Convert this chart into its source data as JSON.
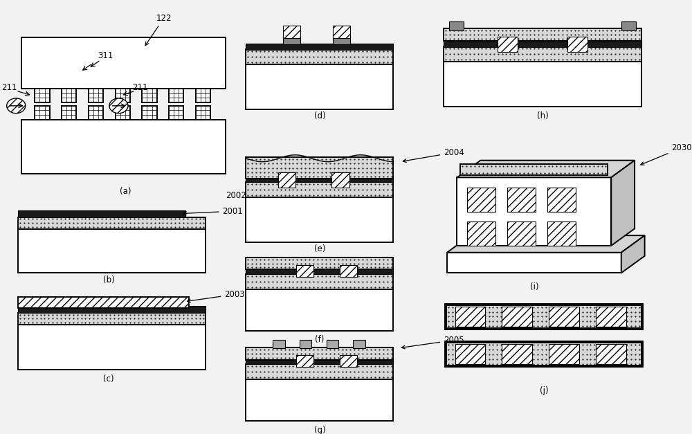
{
  "bg_color": "#f2f2f2",
  "white": "#ffffff",
  "dot_fill": "#d8d8d8",
  "dark_fill": "#1a1a1a",
  "mid_fill": "#888888",
  "labels": [
    "(a)",
    "(b)",
    "(c)",
    "(d)",
    "(e)",
    "(f)",
    "(g)",
    "(h)",
    "(i)",
    "(j)"
  ],
  "lw": 1.4,
  "thin_lw": 0.8,
  "fontsize": 8.5
}
